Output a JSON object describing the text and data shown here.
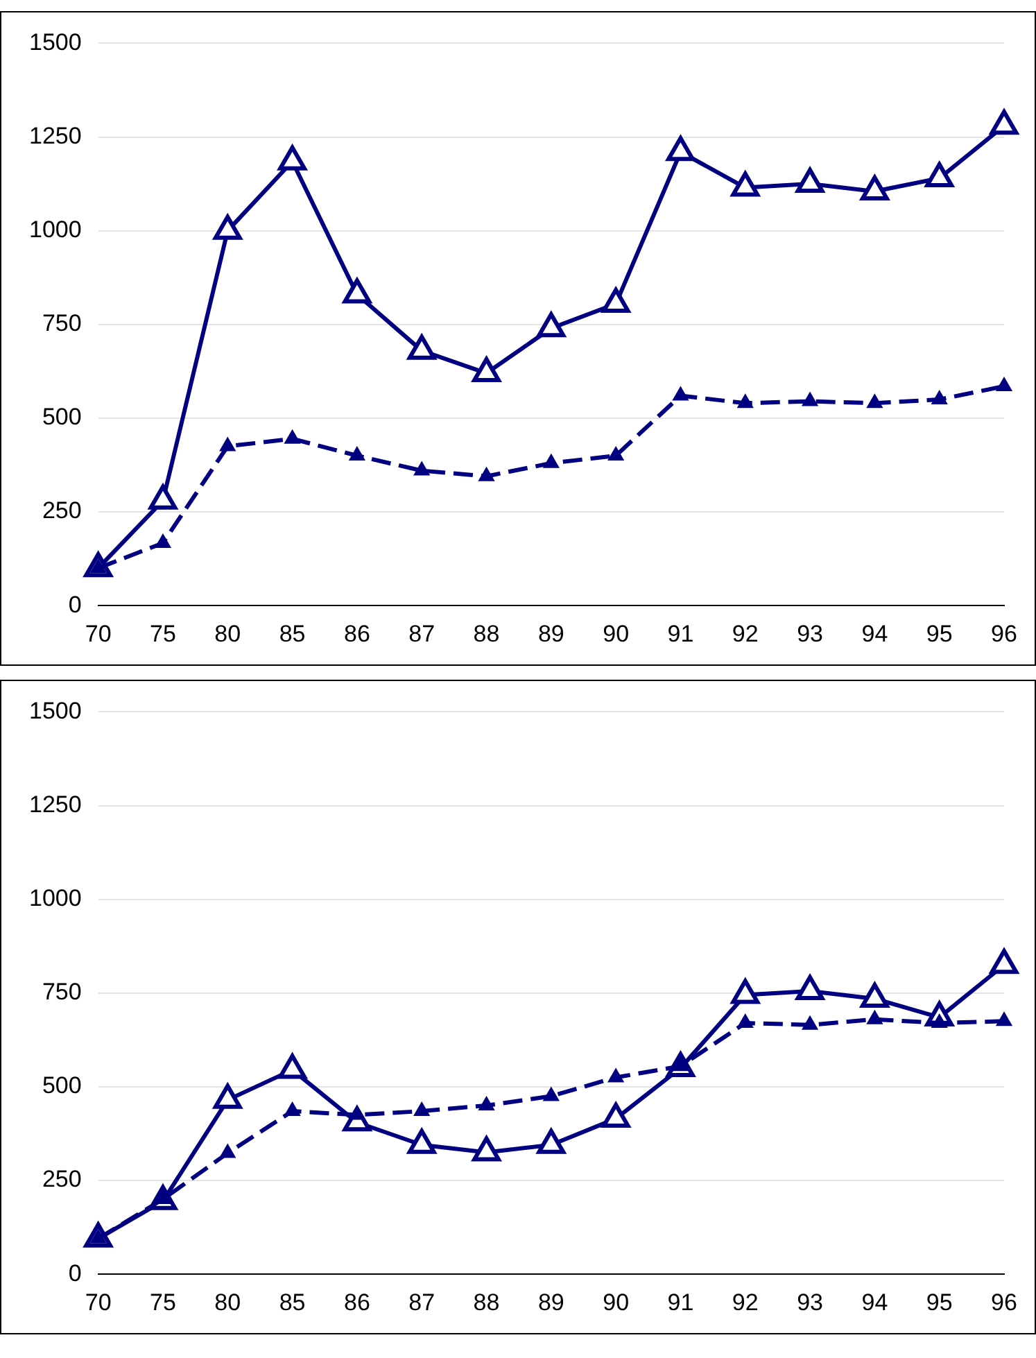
{
  "chart_data": [
    {
      "type": "line",
      "categories": [
        "70",
        "75",
        "80",
        "85",
        "86",
        "87",
        "88",
        "89",
        "90",
        "91",
        "92",
        "93",
        "94",
        "95",
        "96"
      ],
      "series": [
        {
          "color": "#000080",
          "line_style": "solid",
          "values": [
            100,
            280,
            1000,
            1185,
            830,
            680,
            620,
            740,
            805,
            1210,
            1115,
            1125,
            1105,
            1140,
            1280
          ]
        },
        {
          "color": "#000080",
          "line_style": "dashed",
          "values": [
            100,
            167,
            425,
            445,
            400,
            360,
            345,
            380,
            400,
            560,
            540,
            545,
            540,
            550,
            585
          ]
        }
      ],
      "ylim": [
        0,
        1500
      ],
      "yticks": [
        0,
        250,
        500,
        750,
        1000,
        1250,
        1500
      ],
      "grid": "y",
      "marker": "triangle",
      "legend": false
    },
    {
      "type": "line",
      "categories": [
        "70",
        "75",
        "80",
        "85",
        "86",
        "87",
        "88",
        "89",
        "90",
        "91",
        "92",
        "93",
        "94",
        "95",
        "96"
      ],
      "series": [
        {
          "color": "#000080",
          "line_style": "solid",
          "values": [
            95,
            195,
            465,
            545,
            405,
            345,
            325,
            345,
            415,
            550,
            745,
            755,
            735,
            685,
            825
          ]
        },
        {
          "color": "#000080",
          "line_style": "dashed",
          "values": [
            95,
            200,
            323,
            435,
            425,
            435,
            450,
            475,
            525,
            555,
            670,
            665,
            680,
            670,
            675
          ]
        }
      ],
      "ylim": [
        0,
        1500
      ],
      "yticks": [
        0,
        250,
        500,
        750,
        1000,
        1250,
        1500
      ],
      "grid": "y",
      "marker": "triangle",
      "legend": false
    }
  ]
}
